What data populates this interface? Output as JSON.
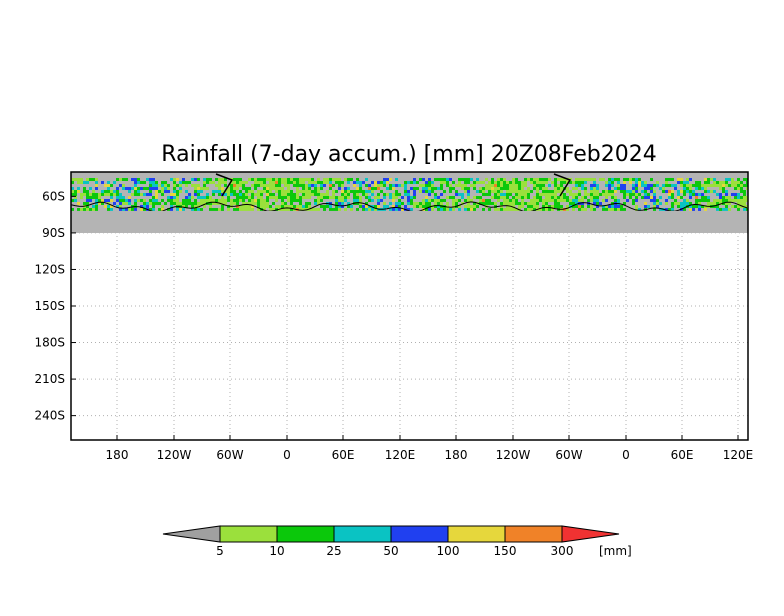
{
  "chart_data": {
    "type": "heatmap",
    "title": "Rainfall (7-day accum.) [mm] 20Z08Feb2024",
    "xlabel": "",
    "ylabel": "",
    "x_ticks": [
      "180",
      "120W",
      "60W",
      "0",
      "60E",
      "120E",
      "180",
      "120W",
      "60W",
      "0",
      "60E",
      "120E"
    ],
    "y_ticks": [
      "60S",
      "90S",
      "120S",
      "150S",
      "180S",
      "210S",
      "240S"
    ],
    "y_range_deg": [
      -260,
      -40
    ],
    "data_band_lat_range": [
      -90,
      -40
    ],
    "grid": true,
    "land_color": "#b4b4b4",
    "colorbar": {
      "unit": "[mm]",
      "levels": [
        "5",
        "10",
        "25",
        "50",
        "100",
        "150",
        "300"
      ],
      "colors": [
        "#a0a0a0",
        "#9be03c",
        "#0bc80b",
        "#0ac3c3",
        "#2040f0",
        "#e6d73c",
        "#f08228",
        "#f03232"
      ]
    }
  }
}
